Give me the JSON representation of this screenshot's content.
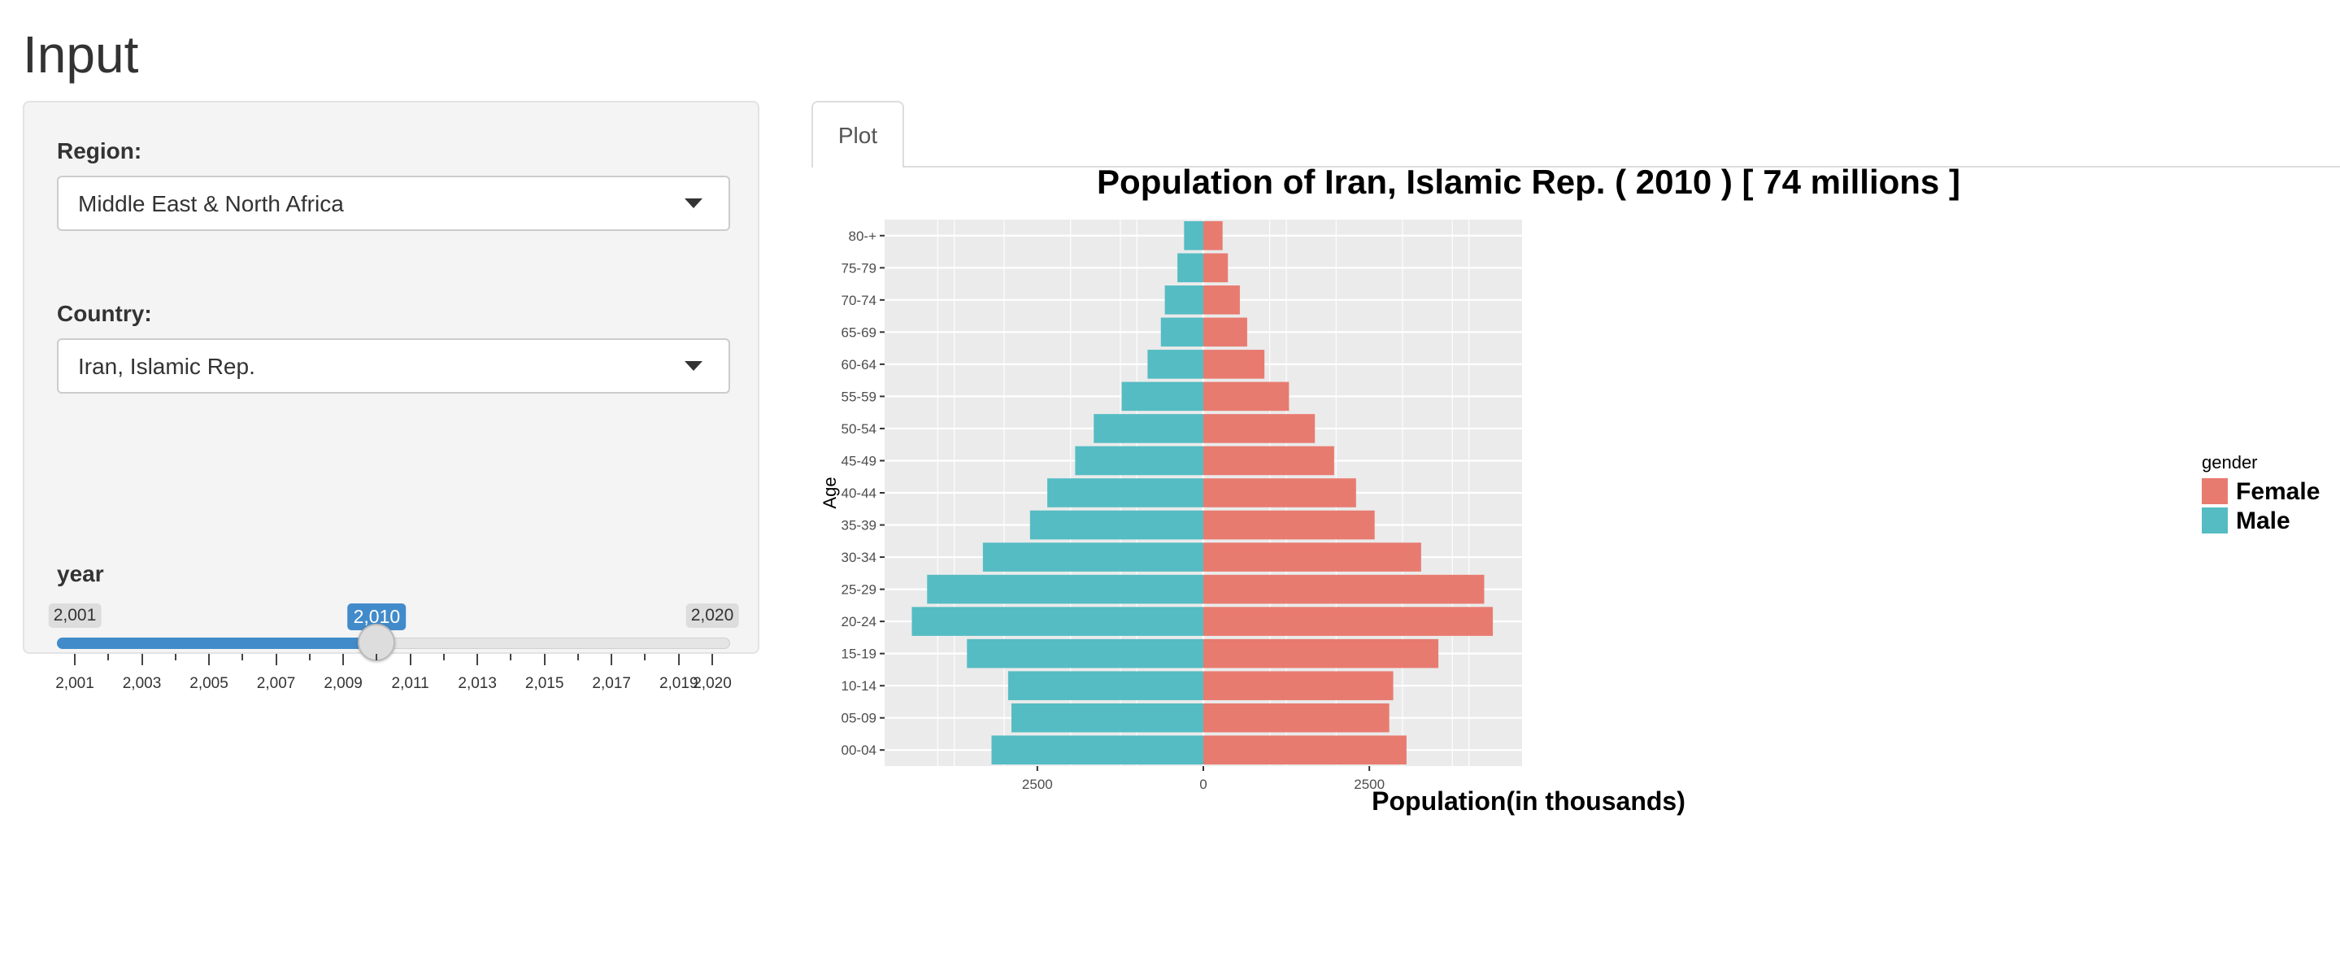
{
  "app": {
    "title": "Input"
  },
  "sidebar": {
    "region": {
      "label": "Region:",
      "value": "Middle East & North Africa"
    },
    "country": {
      "label": "Country:",
      "value": "Iran, Islamic Rep."
    },
    "year": {
      "label": "year",
      "min": 2001,
      "max": 2020,
      "value": 2010,
      "min_label": "2,001",
      "max_label": "2,020",
      "value_label": "2,010",
      "tick_labels": [
        "2,001",
        "2,003",
        "2,005",
        "2,007",
        "2,009",
        "2,011",
        "2,013",
        "2,015",
        "2,017",
        "2,019",
        "2,020"
      ]
    }
  },
  "tabs": [
    {
      "label": "Plot",
      "active": true
    }
  ],
  "chart_data": {
    "type": "bar",
    "orientation": "horizontal",
    "title": "Population of Iran, Islamic Rep. ( 2010 ) [ 74  millions ]",
    "xlabel": "Population(in thousands)",
    "ylabel": "Age",
    "categories": [
      "00-04",
      "05-09",
      "10-14",
      "15-19",
      "20-24",
      "25-29",
      "30-34",
      "35-39",
      "40-44",
      "45-49",
      "50-54",
      "55-59",
      "60-64",
      "65-69",
      "70-74",
      "75-79",
      "80-+"
    ],
    "series": [
      {
        "name": "Male",
        "color": "#55bcc3",
        "values": [
          3190,
          2890,
          2940,
          3560,
          4390,
          4160,
          3320,
          2610,
          2350,
          1930,
          1650,
          1230,
          840,
          640,
          580,
          390,
          290
        ]
      },
      {
        "name": "Female",
        "color": "#e87b70",
        "values": [
          3060,
          2800,
          2860,
          3540,
          4360,
          4230,
          3280,
          2580,
          2300,
          1970,
          1680,
          1290,
          920,
          660,
          550,
          370,
          290
        ]
      }
    ],
    "xlim": [
      -4800,
      4800
    ],
    "x_ticks": [
      {
        "value": -2500,
        "label": "2500"
      },
      {
        "value": 0,
        "label": "0"
      },
      {
        "value": 2500,
        "label": "2500"
      }
    ],
    "legend": {
      "title": "gender",
      "position": "right",
      "entries": [
        "Female",
        "Male"
      ]
    },
    "grid": true,
    "panel_background": "#ebebeb"
  }
}
